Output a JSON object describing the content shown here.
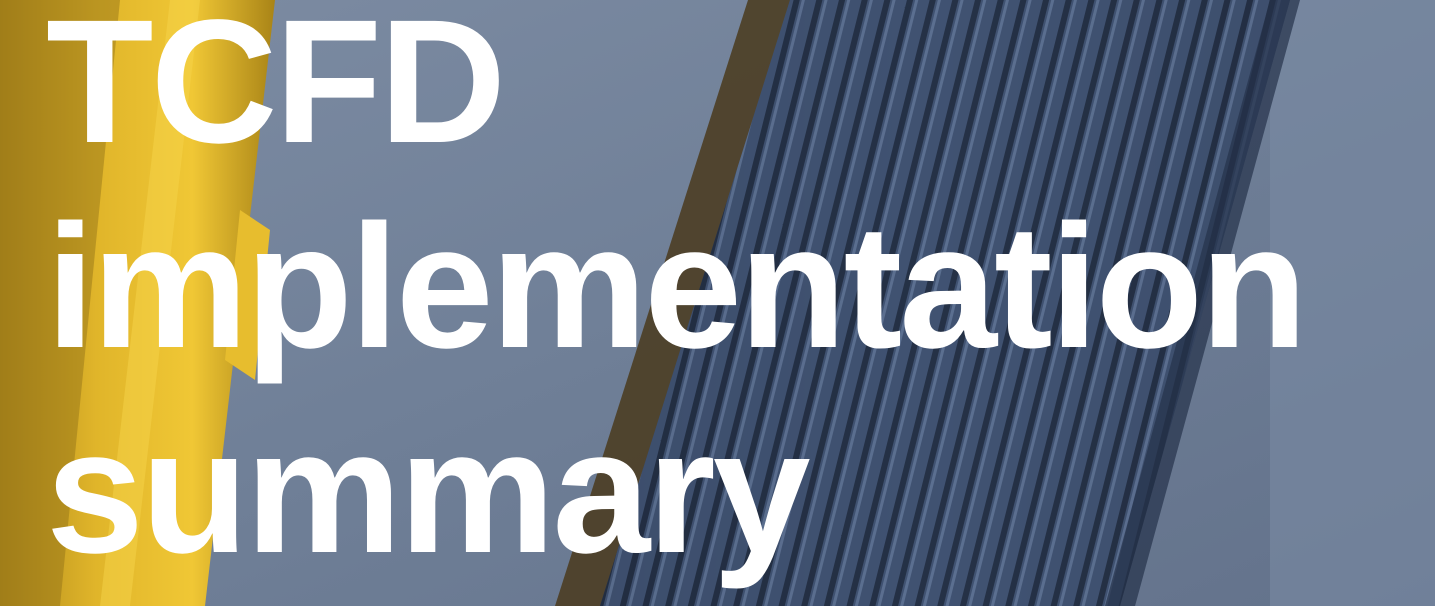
{
  "title": {
    "line1": "TCFD",
    "line2": "implementation",
    "line3": "summary"
  }
}
